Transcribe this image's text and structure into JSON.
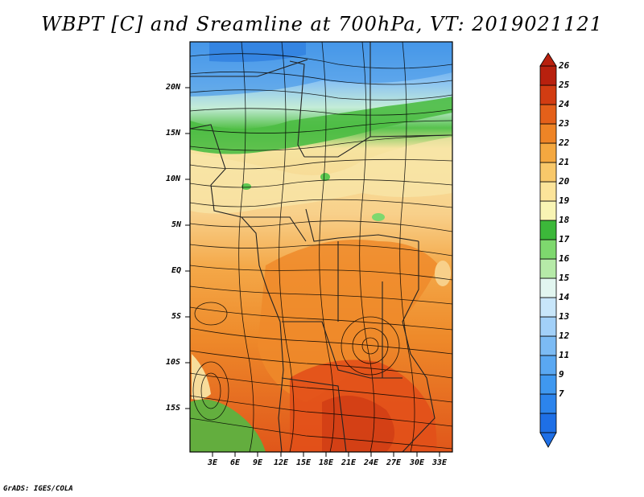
{
  "title": "WBPT [C] and Sreamline at 700hPa, VT: 2019021121",
  "credit": "GrADS: IGES/COLA",
  "lat_ticks": [
    "20N",
    "15N",
    "10N",
    "5N",
    "EQ",
    "5S",
    "10S",
    "15S"
  ],
  "lon_ticks": [
    "3E",
    "6E",
    "9E",
    "12E",
    "15E",
    "18E",
    "21E",
    "24E",
    "27E",
    "30E",
    "33E"
  ],
  "colorbar": {
    "labels": [
      "7",
      "9",
      "11",
      "12",
      "13",
      "14",
      "15",
      "16",
      "17",
      "18",
      "19",
      "20",
      "21",
      "22",
      "23",
      "24",
      "25",
      "26"
    ],
    "colors": [
      "#1e6fe6",
      "#2c84ec",
      "#3f98f0",
      "#5aa8f2",
      "#7cbbf4",
      "#a2d0f8",
      "#c8e6fa",
      "#e2f6f0",
      "#b6eaa8",
      "#7ed86e",
      "#3cb83a",
      "#f8f4b4",
      "#fce49a",
      "#f8c86a",
      "#f4a840",
      "#ee8426",
      "#e4601a",
      "#d23c12",
      "#b8200e"
    ]
  }
}
